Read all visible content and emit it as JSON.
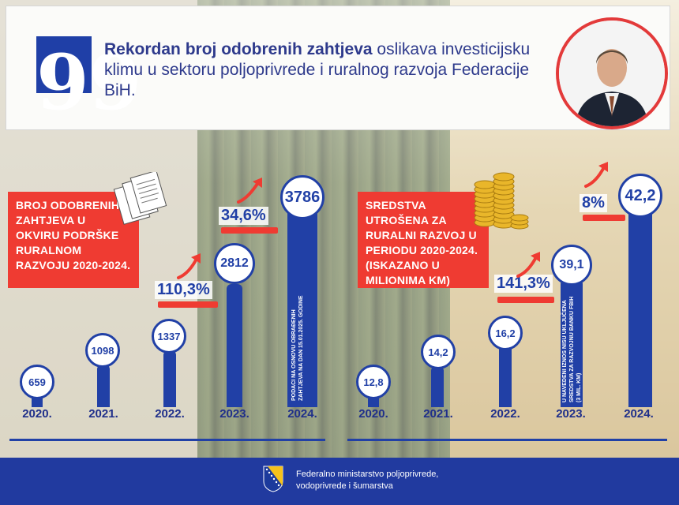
{
  "header": {
    "quote_mark": "99",
    "headline_bold": "Rekordan broj odobrenih zahtjeva",
    "headline_rest": " oslikava investicijsku klimu u sektoru poljoprivrede i ruralnog razvoja Federacije BiH."
  },
  "left": {
    "box_text": "BROJ ODOBRENIH ZAHTJEVA U OKVIRU PODRŠKE RURALNOM RAZVOJU 2020-2024.",
    "values": [
      "659",
      "1098",
      "1337",
      "2812",
      "3786"
    ],
    "pct1": "110,3%",
    "pct2": "34,6%",
    "note": "PODACI NA OSNOVU OBRAĐENIH ZAHTJEVA NA DAN 15.01.2025. GODINE"
  },
  "right": {
    "box_text": "SREDSTVA UTROŠENA ZA RURALNI RAZVOJ U PERIODU 2020-2024. (ISKAZANO U MILIONIMA KM)",
    "values": [
      "12,8",
      "14,2",
      "16,2",
      "39,1",
      "42,2"
    ],
    "pct1": "141,3%",
    "pct2": "8%",
    "note": "U NAVEDENI IZNOS NISU UKLJUČENA SREDSTVA ZA RAZVOJNU BANKU FBIH (3 MIL. KM)"
  },
  "years": [
    "2020.",
    "2021.",
    "2022.",
    "2023.",
    "2024."
  ],
  "footer": {
    "line1": "Federalno ministarstvo poljoprivrede,",
    "line2": "vodoprivrede i šumarstva"
  },
  "colors": {
    "blue": "#2140a6",
    "red": "#ef3b32"
  },
  "icons": [
    "quote-icon",
    "documents-icon",
    "coins-icon",
    "trend-arrow-icon",
    "coat-of-arms-icon"
  ]
}
